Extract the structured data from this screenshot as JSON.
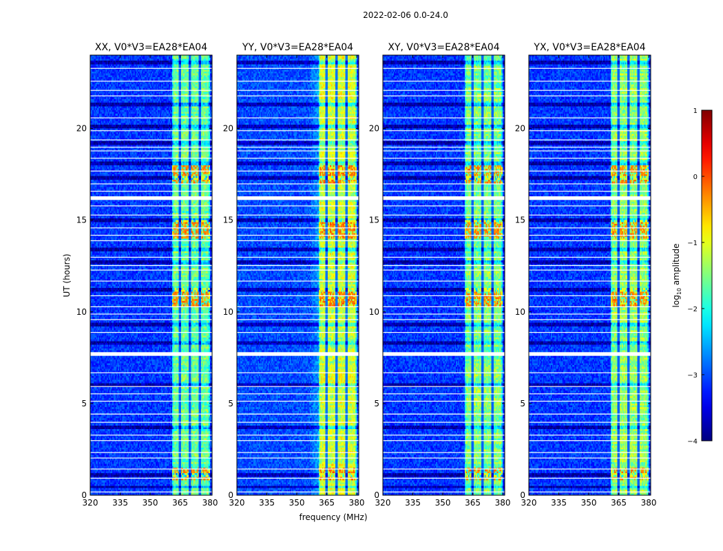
{
  "figure": {
    "suptitle": "2022-02-06 0.0-24.0",
    "xlabel": "frequency (MHz)",
    "ylabel": "UT (hours)",
    "colorbar_label_prefix": "log",
    "colorbar_label_sub": "10",
    "colorbar_label_suffix": " amplitude",
    "colorbar_ticks": [
      "1",
      "0",
      "−1",
      "−2",
      "−3",
      "−4"
    ]
  },
  "chart_data": {
    "type": "heatmap",
    "colormap": "jet",
    "xlim": [
      320,
      381
    ],
    "ylim": [
      0,
      24
    ],
    "x_ticks": [
      320,
      335,
      350,
      365,
      380
    ],
    "y_ticks": [
      0,
      5,
      10,
      15,
      20
    ],
    "clim": [
      -4,
      1
    ],
    "colorbar_ticks": [
      1,
      0,
      -1,
      -2,
      -3,
      -4
    ],
    "panels": [
      {
        "title": "XX, V0*V3=EA28*EA04",
        "noise_level": -3.1,
        "band_level": -1.6,
        "peak_level": -0.3
      },
      {
        "title": "YY, V0*V3=EA28*EA04",
        "noise_level": -3.0,
        "band_level": -1.1,
        "peak_level": -0.2
      },
      {
        "title": "XY, V0*V3=EA28*EA04",
        "noise_level": -3.1,
        "band_level": -1.5,
        "peak_level": -0.3
      },
      {
        "title": "YX, V0*V3=EA28*EA04",
        "noise_level": -3.1,
        "band_level": -1.4,
        "peak_level": -0.3
      }
    ],
    "signal_band_mhz": [
      361,
      380
    ],
    "band_dropout_channels_mhz": [
      365,
      370,
      375
    ],
    "white_flag_ranges_hours": [
      [
        7.6,
        7.8
      ],
      [
        16.1,
        16.3
      ],
      [
        4.4,
        4.45
      ],
      [
        12.5,
        12.55
      ]
    ]
  }
}
